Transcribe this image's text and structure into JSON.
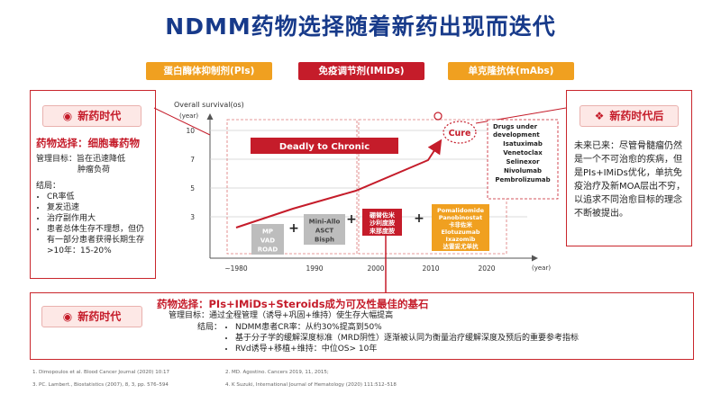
{
  "title": "NDMM药物选择随着新药出现而迭代",
  "tabs": [
    "蛋白酶体抑制剂(PIs)",
    "免疫调节剂(IMiDs)",
    "单克隆抗体(mAbs)"
  ],
  "left_panel": {
    "badge": "新药时代",
    "heading": "药物选择：细胞毒药物",
    "goal_label": "管理目标：旨在迅速降低",
    "goal_cont": "肿瘤负荷",
    "result_label": "结局：",
    "results": [
      "CR率低",
      "复发迅速",
      "治疗副作用大",
      "患者总体生存不理想，但仍有一部分患者获得长期生存>10年：15-20%"
    ]
  },
  "right_panel": {
    "badge": "新药时代后",
    "text": "未来已来：尽管骨髓瘤仍然是一个不可治愈的疾病，但是PIs+IMiDs优化，单抗免疫治疗及新MOA层出不穷，以追求不同治愈目标的理念不断被提出。"
  },
  "bottom_panel": {
    "badge": "新药时代",
    "heading": "药物选择：PIs+IMiDs+Steroids成为可及性最佳的基石",
    "goal": "管理目标：通过全程管理（诱导+巩固+维持）使生存大幅提高",
    "result_label": "结局：",
    "bullets": [
      "NDMM患者CR率：从约30%提高到50%",
      "基于分子学的缓解深度标准（MRD阴性）逐渐被认同为衡量治疗缓解深度及预后的重要参考指标",
      "RVd诱导+移植+维持：中位OS> 10年"
    ]
  },
  "chart_data": {
    "type": "line",
    "ylabel": "Overall survival(os)",
    "ylabel_unit": "(year)",
    "xlabel": "(year)",
    "yticks": [
      "3",
      "5",
      "7",
      "10"
    ],
    "xticks": [
      "~1980",
      "1990",
      "2000",
      "2010",
      "2020"
    ],
    "banner": "Deadly to Chronic",
    "cure": "Cure",
    "regimens": [
      {
        "lines": [
          "MP",
          "VAD",
          "ROAD"
        ],
        "color": "#bdbdbd",
        "text_color": "#ffffff"
      },
      {
        "lines": [
          "Mini-Allo",
          "ASCT",
          "Bisph"
        ],
        "color": "#bdbdbd",
        "text_color": "#444444"
      },
      {
        "lines": [
          "硼替佐米",
          "沙利度胺",
          "来那度胺"
        ],
        "color": "#c51c2a",
        "text_color": "#ffffff"
      },
      {
        "lines": [
          "Pomalidomide",
          "Panobinostat",
          "卡非佐米",
          "Elotuzumab",
          "Ixazomib",
          "达雷妥尤单抗"
        ],
        "color": "#f0a020",
        "text_color": "#ffffff"
      }
    ],
    "drugs_title": [
      "Drugs under",
      "development"
    ],
    "drugs": [
      "Isatuximab",
      "Venetoclax",
      "Selinexor",
      "Nivolumab",
      "Pembrolizumab"
    ],
    "plus": "+"
  },
  "footnotes": [
    "1.  Dimopoulos et al. Blood Cancer Journal (2020) 10:17",
    "2.  MD. Agostino. Cancers 2019, 11, 2015;",
    "3.  PC. Lambert., Biostatistics (2007), 8, 3, pp. 576–594",
    "4.  K Suzuki, International Journal of Hematology (2020) 111:512–518"
  ],
  "colors": {
    "accent": "#c51c2a",
    "navy": "#173a8a",
    "orange": "#f0a020",
    "gray": "#bdbdbd"
  }
}
